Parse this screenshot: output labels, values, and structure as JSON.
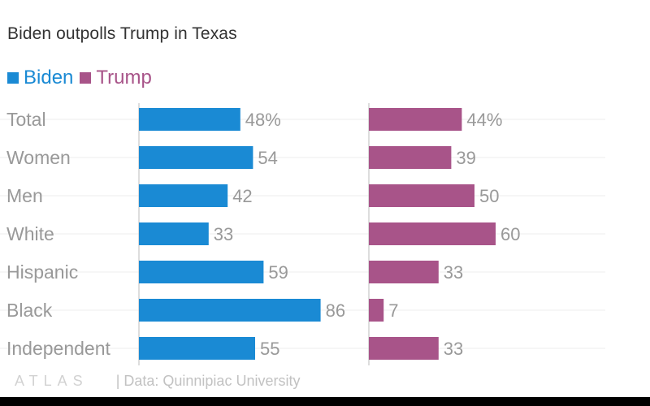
{
  "colors": {
    "biden": "#1a8ad4",
    "trump": "#a85489",
    "label": "#999999",
    "grid": "#eeeeee",
    "axis": "#bbbbbb"
  },
  "chart_data": {
    "type": "bar",
    "orientation": "horizontal",
    "title": "Biden outpolls Trump in Texas",
    "categories": [
      "Total",
      "Women",
      "Men",
      "White",
      "Hispanic",
      "Black",
      "Independent"
    ],
    "series": [
      {
        "name": "Biden",
        "values": [
          48,
          54,
          42,
          33,
          59,
          86,
          55
        ],
        "labels": [
          "48%",
          "54",
          "42",
          "33",
          "59",
          "86",
          "55"
        ]
      },
      {
        "name": "Trump",
        "values": [
          44,
          39,
          50,
          60,
          33,
          7,
          33
        ],
        "labels": [
          "44%",
          "39",
          "50",
          "60",
          "33",
          "7",
          "33"
        ]
      }
    ],
    "xlim": [
      0,
      100
    ],
    "grid": true,
    "legend": "top-left"
  },
  "footer": {
    "logo": "ATLAS",
    "source": "| Data: Quinnipiac University"
  }
}
